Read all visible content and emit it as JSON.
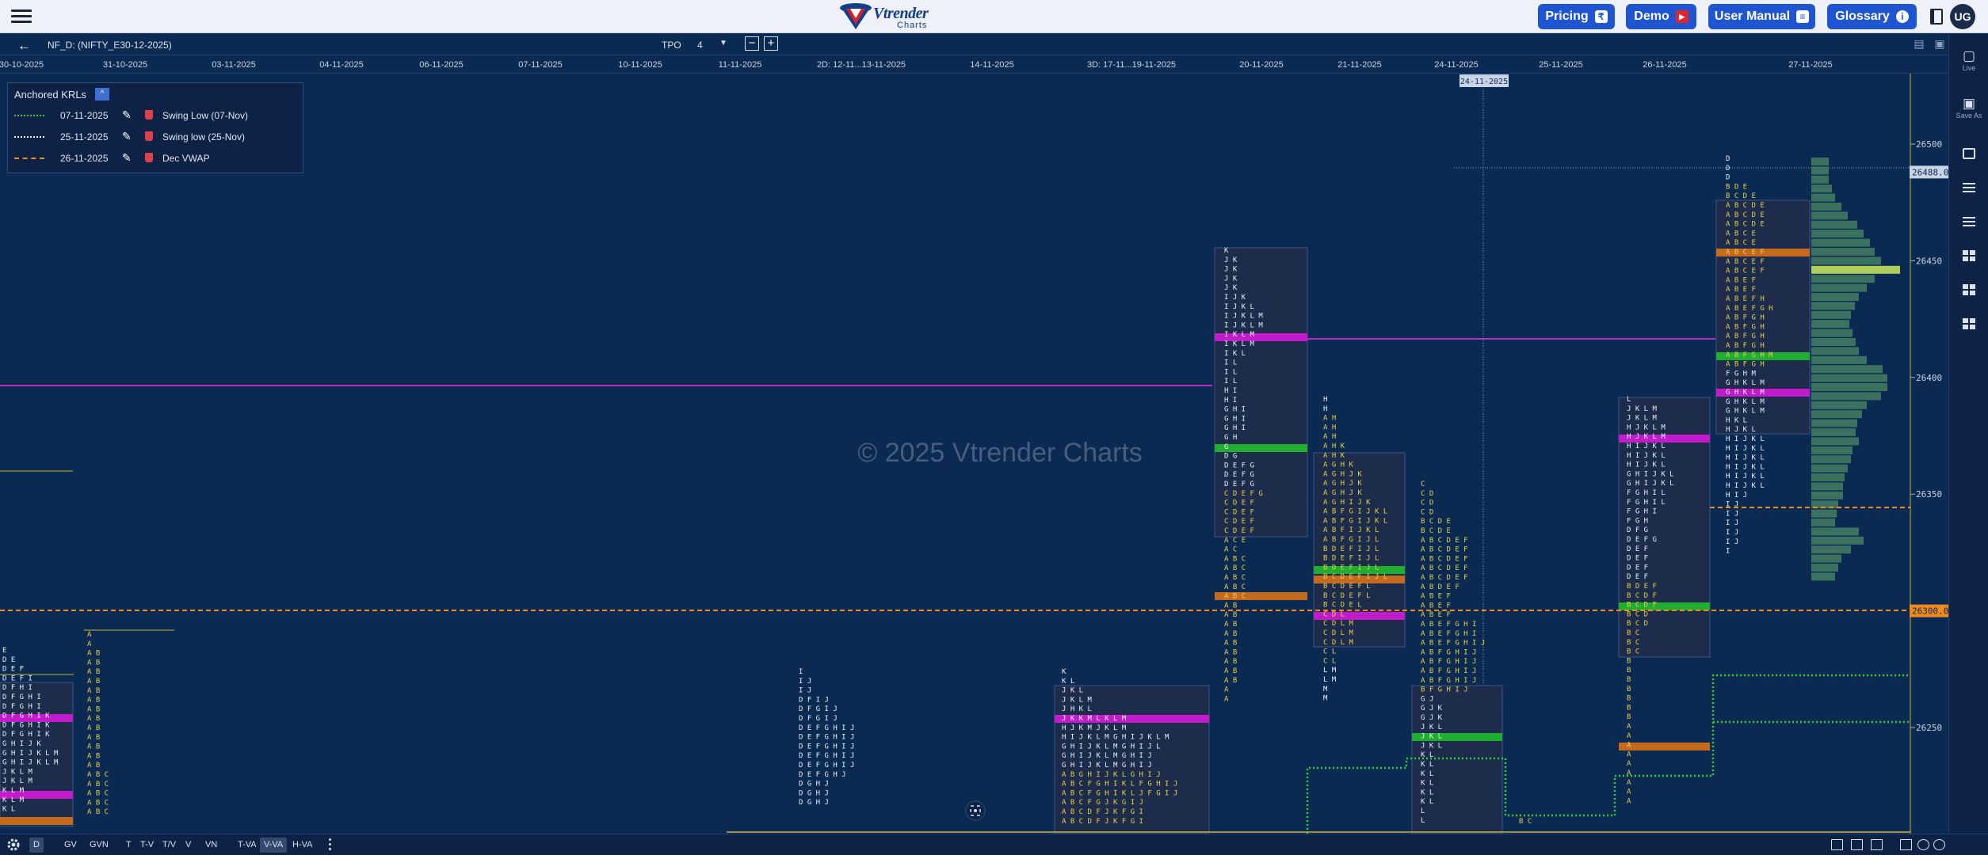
{
  "topnav": {
    "logo_text": "Vtrender",
    "logo_sub": "Charts",
    "buttons": [
      {
        "label": "Pricing",
        "icon_glyph": "₹"
      },
      {
        "label": "Demo",
        "icon_glyph": "▶"
      },
      {
        "label": "User Manual",
        "icon_glyph": "≡"
      },
      {
        "label": "Glossary",
        "icon_glyph": "i"
      }
    ],
    "user_initials": "UG"
  },
  "toolbar": {
    "symbol": "NF_D: (NIFTY_E30-12-2025)",
    "tpo_label": "TPO",
    "tpo_value": "4",
    "minus": "−",
    "plus": "+"
  },
  "dates": [
    "30-10-2025",
    "31-10-2025",
    "03-11-2025",
    "04-11-2025",
    "06-11-2025",
    "07-11-2025",
    "10-11-2025",
    "11-11-2025",
    "2D: 12-11...13-11-2025",
    "14-11-2025",
    "3D: 17-11...19-11-2025",
    "20-11-2025",
    "21-11-2025",
    "24-11-2025",
    "25-11-2025",
    "26-11-2025",
    "27-11-2025"
  ],
  "crosshair_date": "24-11-2025",
  "krl": {
    "title": "Anchored KRLs",
    "collapse_glyph": "^",
    "rows": [
      {
        "date": "07-11-2025",
        "name": "Swing Low (07-Nov)",
        "color": "#27d23d",
        "style": "dotted"
      },
      {
        "date": "25-11-2025",
        "name": "Swing low (25-Nov)",
        "color": "#e8eef8",
        "style": "dotted"
      },
      {
        "date": "26-11-2025",
        "name": "Dec VWAP",
        "color": "#f08a1e",
        "style": "dashed"
      }
    ]
  },
  "watermark": "© 2025 Vtrender Charts",
  "chart_data": {
    "type": "market-profile",
    "y_ticks": [
      "26500",
      "26450",
      "26400",
      "26350",
      "26300",
      "26250"
    ],
    "price_markers": [
      {
        "label": "26488.00",
        "style": "crosshair"
      },
      {
        "label": "26300.00",
        "style": "vwap"
      }
    ],
    "profiles": [
      {
        "date": "30-10-2025",
        "rows": [
          "E",
          "D E",
          "D E F",
          "D E F I",
          "D F H I",
          "D F G H I",
          "D F G H I",
          "D F G H I K",
          "D F G H I K",
          "D F G H I K",
          "G H I J K",
          "G H I J K L M",
          "G H I J K L M",
          "J K L M",
          "J K L M",
          "K L M",
          "K L M",
          "K L"
        ]
      },
      {
        "date": "31-10-2025",
        "rows": [
          "A",
          "A",
          "A B",
          "A B",
          "A B",
          "A B",
          "A B",
          "A B",
          "A B",
          "A B",
          "A B",
          "A B",
          "A B",
          "A B",
          "A B",
          "A B C",
          "A B C",
          "A B C",
          "A B C",
          "A B C"
        ]
      },
      {
        "date": "11-11-2025",
        "rows": [
          "I",
          "I J",
          "I J",
          "D F I J",
          "D F G I J",
          "D F G I J",
          "D E F G H I J",
          "D E F G H I J",
          "D E F G H I J",
          "D E F G H I J",
          "D E F G H I J",
          "D E F G H J",
          "D G H J",
          "D G H J",
          "D G H J"
        ]
      },
      {
        "date": "2D: 12-11...13-11-2025",
        "rows": [
          "K",
          "K L",
          "J K L",
          "J K L M",
          "J H K L",
          "J K K M L K L M",
          "H J K M J K L M",
          "H I J K L M G H I J K L M",
          "G H I J K L M G H I J L",
          "G H I J K L M G H I J",
          "G H I J K L M G H I J",
          "A B G H I J K L G H I J",
          "A B C F G H I K L F G H I J",
          "A B C F G H I K L J F G I J",
          "A B C F G J K G I J",
          "A B C D F J K F G I",
          "A B C D F J K F G I"
        ]
      },
      {
        "date": "20-11-2025",
        "rows": [
          "K",
          "J K",
          "J K",
          "J K",
          "J K",
          "I J K",
          "I J K L",
          "I J K L M",
          "I J K L M",
          "I K L M",
          "I K L M",
          "I K L",
          "I L",
          "I L",
          "I L",
          "H I",
          "H I",
          "G H I",
          "G H I",
          "G H I",
          "G H",
          "G",
          "D G",
          "D E F G",
          "D E F G",
          "D E F G",
          "C D E F G",
          "C D E F",
          "C D E F",
          "C D E F",
          "C D E F",
          "A C E",
          "A C",
          "A B C",
          "A B C",
          "A B C",
          "A B C",
          "A B C",
          "A B",
          "A B",
          "A B",
          "A B",
          "A B",
          "A B",
          "A B",
          "A B",
          "A B",
          "A",
          "A"
        ]
      },
      {
        "date": "21-11-2025",
        "rows": [
          "H",
          "H",
          "A H",
          "A H",
          "A H",
          "A H K",
          "A H K",
          "A G H K",
          "A G H J K",
          "A G H J K",
          "A G H J K",
          "A G H I J K",
          "A B F G I J K L",
          "A B F G I J K L",
          "A B F I J K L",
          "A B F G I J L",
          "B D E F I J L",
          "B D E F I J L",
          "B D E F I J L",
          "B C D E F I J L",
          "B C D E F L",
          "B C D E F L",
          "B C D E L",
          "C D L",
          "C D L M",
          "C D L M",
          "C D L M",
          "C L",
          "C L",
          "L M",
          "L M",
          "M",
          "M"
        ]
      },
      {
        "date": "24-11-2025",
        "rows": [
          "C",
          "C D",
          "C D",
          "C D",
          "B C D E",
          "B C D E",
          "A B C D E F",
          "A B C D E F",
          "A B C D E F",
          "A B C D E F",
          "A B C D E F",
          "A B D E F",
          "A B E F",
          "A B E F",
          "A B E F",
          "A B E F G H I",
          "A B E F G H I",
          "A B E F G H I J",
          "A B F G H I J",
          "A B F G H I J",
          "A B F G H I J",
          "A B F G H I J",
          "B F G H I J",
          "G J",
          "G J K",
          "G J K",
          "J K L",
          "J K L",
          "J K L",
          "K L",
          "K L",
          "K L",
          "K L",
          "K L",
          "K L",
          "L",
          "L"
        ]
      },
      {
        "date": "25-11-2025",
        "rows": [
          "B C",
          "B C"
        ]
      },
      {
        "date": "26-11-2025",
        "rows": [
          "L",
          "J K L M",
          "J K L M",
          "H J K L M",
          "H J K L M",
          "H I J K L",
          "H I J K L",
          "H I J K L",
          "G H I J K L",
          "G H I J K L",
          "F G H I L",
          "F G H I L",
          "F G H I",
          "F G H",
          "D F G",
          "D E F G",
          "D E F",
          "D E F",
          "D E F",
          "D E F",
          "B D E F",
          "B C D F",
          "B C D F",
          "B C D",
          "B C D",
          "B C",
          "B C",
          "B C",
          "B",
          "B",
          "B",
          "B",
          "B",
          "B",
          "B",
          "A",
          "A",
          "A",
          "A",
          "A",
          "A",
          "A",
          "A",
          "A"
        ]
      },
      {
        "date": "27-11-2025",
        "rows": [
          "D",
          "D",
          "D",
          "B D E",
          "B C D E",
          "A B C D E",
          "A B C D E",
          "A B C D E",
          "A B C E",
          "A B C E",
          "A B C E F",
          "A B C E F",
          "A B C E F",
          "A B E F",
          "A B E F",
          "A B E F H",
          "A B E F G H",
          "A B F G H",
          "A B F G H",
          "A B F G H",
          "A B F G H",
          "A B F G H M",
          "A B F G H",
          "F G H M",
          "G H K L M",
          "G H K L M",
          "G H K L M",
          "G H K L M",
          "H K L",
          "H J K L",
          "H I J K L",
          "H I J K L",
          "H I J K L",
          "H I J K L",
          "H I J K L",
          "H I J K L",
          "H I J",
          "I J",
          "I J",
          "I J",
          "I J",
          "I J",
          "I"
        ]
      }
    ]
  },
  "right_sidebar": [
    {
      "label": "Live",
      "glyph": "📄"
    },
    {
      "label": "Save As",
      "glyph": "💾"
    }
  ],
  "bottombar": {
    "items": [
      "D",
      "GV",
      "GVN",
      "T",
      "T-V",
      "T/V",
      "V",
      "VN",
      "T-VA",
      "V-VA",
      "H-VA"
    ],
    "active": [
      "D",
      "V-VA"
    ]
  }
}
